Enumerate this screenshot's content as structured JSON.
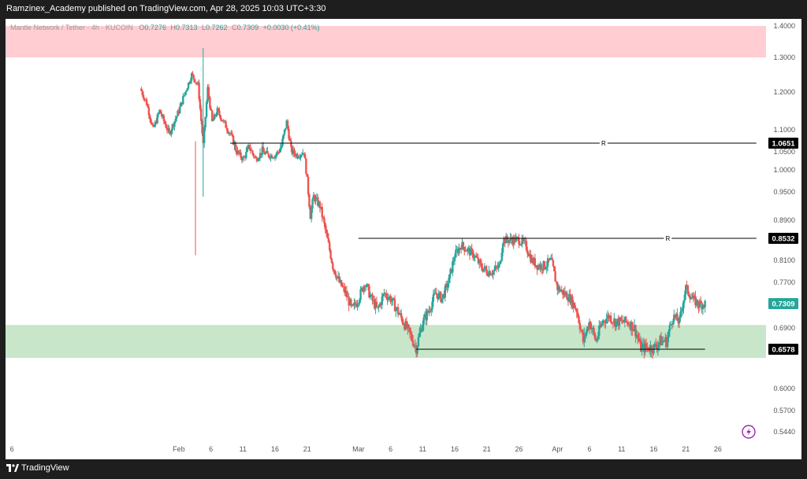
{
  "publish_line": "Ramzinex_Academy published on TradingView.com, Apr 28, 2025 10:03 UTC+3:30",
  "legend": {
    "symbol": "Mantle Network / Tether · 4h · KUCOIN",
    "o_label": "O",
    "o_value": "0.7276",
    "h_label": "H",
    "h_value": "0.7313",
    "l_label": "L",
    "l_value": "0.7262",
    "c_label": "C",
    "c_value": "0.7309",
    "change": "+0.0030 (+0.41%)"
  },
  "footer": {
    "brand": "TradingView"
  },
  "colors": {
    "up": "#26a69a",
    "down": "#ef5350",
    "resistance_zone": "#ffcdd2",
    "support_zone": "#c8e6c9",
    "line": "#000000",
    "price_label_bg": "#000000",
    "current_price_bg": "#26a69a"
  },
  "icons": [
    "tradingview-logo-icon",
    "lightning-icon"
  ],
  "chart_data": {
    "type": "candlestick",
    "pair": "MNT/USDT",
    "timeframe": "4h",
    "exchange": "KUCOIN",
    "ylim": [
      0.5,
      1.42
    ],
    "y_ticks": [
      "1.4000",
      "1.3000",
      "1.2000",
      "1.1000",
      "1.0500",
      "1.0000",
      "0.9500",
      "0.8900",
      "0.8100",
      "0.7700",
      "0.6900",
      "0.6000",
      "0.5700",
      "0.5440"
    ],
    "x_ticks": [
      {
        "label": "6",
        "day": 6
      },
      {
        "label": "Feb",
        "day": 32
      },
      {
        "label": "6",
        "day": 37
      },
      {
        "label": "11",
        "day": 42
      },
      {
        "label": "16",
        "day": 47
      },
      {
        "label": "21",
        "day": 52
      },
      {
        "label": "Mar",
        "day": 60
      },
      {
        "label": "6",
        "day": 65
      },
      {
        "label": "11",
        "day": 70
      },
      {
        "label": "16",
        "day": 75
      },
      {
        "label": "21",
        "day": 80
      },
      {
        "label": "26",
        "day": 85
      },
      {
        "label": "Apr",
        "day": 91
      },
      {
        "label": "6",
        "day": 96
      },
      {
        "label": "11",
        "day": 101
      },
      {
        "label": "16",
        "day": 106
      },
      {
        "label": "21",
        "day": 111
      },
      {
        "label": "26",
        "day": 116
      }
    ],
    "zones": [
      {
        "name": "resistance",
        "from": 1.3,
        "to": 1.4
      },
      {
        "name": "support",
        "from": 0.645,
        "to": 0.695
      }
    ],
    "levels": [
      {
        "label": "R",
        "value": 1.0651,
        "value_label": "1.0651",
        "day_from": 40,
        "day_to": 122
      },
      {
        "label": "R",
        "value": 0.8532,
        "value_label": "0.8532",
        "day_from": 60,
        "day_to": 122
      },
      {
        "label": "",
        "value": 0.6578,
        "value_label": "0.6578",
        "day_from": 69,
        "day_to": 114
      }
    ],
    "current_price": {
      "value": 0.7309,
      "label": "0.7309"
    },
    "close_path": [
      {
        "day": 26.0,
        "close": 1.21
      },
      {
        "day": 27.0,
        "close": 1.17
      },
      {
        "day": 28.0,
        "close": 1.1
      },
      {
        "day": 29.0,
        "close": 1.15
      },
      {
        "day": 30.5,
        "close": 1.09
      },
      {
        "day": 32.0,
        "close": 1.15
      },
      {
        "day": 33.0,
        "close": 1.2
      },
      {
        "day": 34.0,
        "close": 1.25
      },
      {
        "day": 35.0,
        "close": 1.22
      },
      {
        "day": 35.8,
        "close": 1.06
      },
      {
        "day": 36.5,
        "close": 1.21
      },
      {
        "day": 37.2,
        "close": 1.12
      },
      {
        "day": 38.0,
        "close": 1.15
      },
      {
        "day": 39.0,
        "close": 1.12
      },
      {
        "day": 40.0,
        "close": 1.09
      },
      {
        "day": 41.0,
        "close": 1.05
      },
      {
        "day": 42.0,
        "close": 1.03
      },
      {
        "day": 43.0,
        "close": 1.06
      },
      {
        "day": 44.0,
        "close": 1.03
      },
      {
        "day": 45.0,
        "close": 1.05
      },
      {
        "day": 46.0,
        "close": 1.04
      },
      {
        "day": 47.0,
        "close": 1.04
      },
      {
        "day": 48.0,
        "close": 1.06
      },
      {
        "day": 48.8,
        "close": 1.12
      },
      {
        "day": 49.5,
        "close": 1.05
      },
      {
        "day": 50.5,
        "close": 1.04
      },
      {
        "day": 51.5,
        "close": 1.05
      },
      {
        "day": 52.5,
        "close": 0.9
      },
      {
        "day": 53.0,
        "close": 0.94
      },
      {
        "day": 54.0,
        "close": 0.92
      },
      {
        "day": 55.0,
        "close": 0.86
      },
      {
        "day": 56.0,
        "close": 0.8
      },
      {
        "day": 57.0,
        "close": 0.77
      },
      {
        "day": 58.0,
        "close": 0.75
      },
      {
        "day": 59.0,
        "close": 0.72
      },
      {
        "day": 60.0,
        "close": 0.74
      },
      {
        "day": 61.0,
        "close": 0.77
      },
      {
        "day": 62.0,
        "close": 0.74
      },
      {
        "day": 63.0,
        "close": 0.72
      },
      {
        "day": 64.0,
        "close": 0.75
      },
      {
        "day": 65.0,
        "close": 0.74
      },
      {
        "day": 66.0,
        "close": 0.72
      },
      {
        "day": 67.0,
        "close": 0.7
      },
      {
        "day": 68.0,
        "close": 0.68
      },
      {
        "day": 69.0,
        "close": 0.66
      },
      {
        "day": 70.0,
        "close": 0.7
      },
      {
        "day": 71.0,
        "close": 0.72
      },
      {
        "day": 72.0,
        "close": 0.75
      },
      {
        "day": 73.0,
        "close": 0.74
      },
      {
        "day": 74.0,
        "close": 0.77
      },
      {
        "day": 75.0,
        "close": 0.82
      },
      {
        "day": 76.0,
        "close": 0.84
      },
      {
        "day": 77.0,
        "close": 0.83
      },
      {
        "day": 78.0,
        "close": 0.82
      },
      {
        "day": 79.0,
        "close": 0.8
      },
      {
        "day": 80.0,
        "close": 0.79
      },
      {
        "day": 81.0,
        "close": 0.79
      },
      {
        "day": 82.0,
        "close": 0.8
      },
      {
        "day": 82.5,
        "close": 0.85
      },
      {
        "day": 84.0,
        "close": 0.85
      },
      {
        "day": 85.0,
        "close": 0.85
      },
      {
        "day": 86.0,
        "close": 0.84
      },
      {
        "day": 87.0,
        "close": 0.81
      },
      {
        "day": 88.0,
        "close": 0.8
      },
      {
        "day": 89.0,
        "close": 0.8
      },
      {
        "day": 90.0,
        "close": 0.81
      },
      {
        "day": 91.0,
        "close": 0.76
      },
      {
        "day": 92.0,
        "close": 0.75
      },
      {
        "day": 93.0,
        "close": 0.74
      },
      {
        "day": 94.0,
        "close": 0.72
      },
      {
        "day": 95.0,
        "close": 0.67
      },
      {
        "day": 96.0,
        "close": 0.7
      },
      {
        "day": 97.0,
        "close": 0.67
      },
      {
        "day": 98.0,
        "close": 0.7
      },
      {
        "day": 99.0,
        "close": 0.71
      },
      {
        "day": 100.0,
        "close": 0.7
      },
      {
        "day": 101.0,
        "close": 0.7
      },
      {
        "day": 102.0,
        "close": 0.7
      },
      {
        "day": 103.0,
        "close": 0.69
      },
      {
        "day": 104.0,
        "close": 0.66
      },
      {
        "day": 105.0,
        "close": 0.66
      },
      {
        "day": 106.0,
        "close": 0.66
      },
      {
        "day": 107.0,
        "close": 0.67
      },
      {
        "day": 108.0,
        "close": 0.67
      },
      {
        "day": 109.0,
        "close": 0.71
      },
      {
        "day": 110.0,
        "close": 0.7
      },
      {
        "day": 111.0,
        "close": 0.76
      },
      {
        "day": 112.0,
        "close": 0.74
      },
      {
        "day": 113.0,
        "close": 0.73
      },
      {
        "day": 114.0,
        "close": 0.7309
      }
    ]
  }
}
